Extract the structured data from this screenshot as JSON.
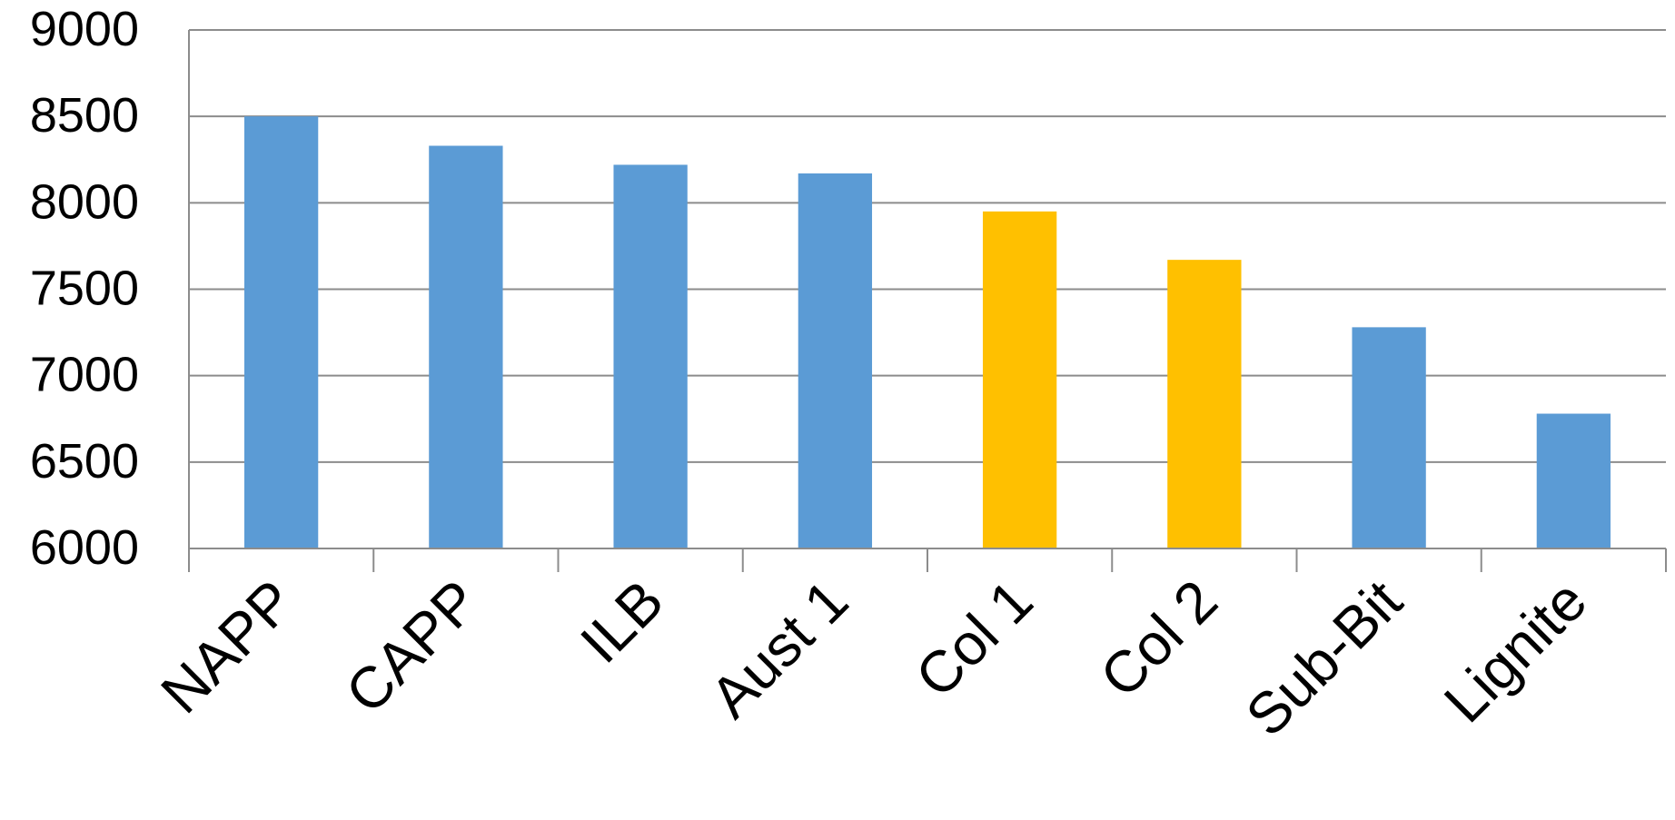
{
  "chart_data": {
    "type": "bar",
    "title": "",
    "xlabel": "",
    "ylabel": "",
    "ylim": [
      6000,
      9000
    ],
    "yticks": [
      6000,
      6500,
      7000,
      7500,
      8000,
      8500,
      9000
    ],
    "grid": true,
    "legend": "none",
    "categories": [
      "NAPP",
      "CAPP",
      "ILB",
      "Aust 1",
      "Col 1",
      "Col 2",
      "Sub-Bit",
      "Lignite"
    ],
    "values": [
      8500,
      8330,
      8220,
      8170,
      7950,
      7670,
      7280,
      6780
    ],
    "colors": [
      "#5B9BD5",
      "#5B9BD5",
      "#5B9BD5",
      "#5B9BD5",
      "#FFC000",
      "#FFC000",
      "#5B9BD5",
      "#5B9BD5"
    ],
    "gridline_color": "#8C8C8C",
    "axis_color": "#8C8C8C"
  }
}
